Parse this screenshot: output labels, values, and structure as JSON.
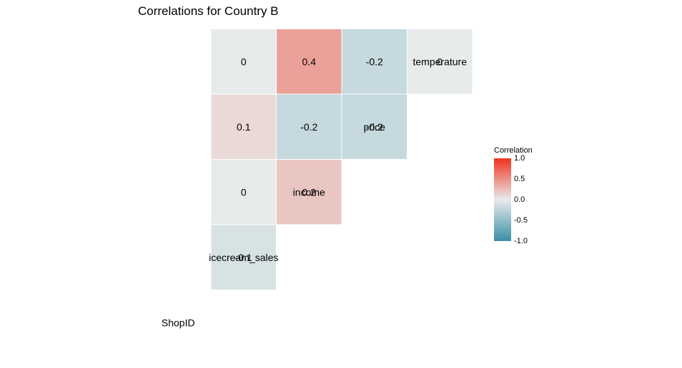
{
  "chart_data": {
    "type": "heatmap",
    "title": "Correlations for Country B",
    "variables": [
      "ShopID",
      "icecream_sales",
      "income",
      "price",
      "temperature"
    ],
    "cells": [
      {
        "row": "icecream_sales",
        "col": "ShopID",
        "value": -0.1,
        "label": "-0.1"
      },
      {
        "row": "income",
        "col": "ShopID",
        "value": 0,
        "label": "0"
      },
      {
        "row": "income",
        "col": "icecream_sales",
        "value": 0.2,
        "label": "0.2"
      },
      {
        "row": "price",
        "col": "ShopID",
        "value": 0.1,
        "label": "0.1"
      },
      {
        "row": "price",
        "col": "icecream_sales",
        "value": -0.2,
        "label": "-0.2"
      },
      {
        "row": "price",
        "col": "income",
        "value": -0.2,
        "label": "-0.2"
      },
      {
        "row": "temperature",
        "col": "ShopID",
        "value": 0,
        "label": "0"
      },
      {
        "row": "temperature",
        "col": "icecream_sales",
        "value": 0.4,
        "label": "0.4"
      },
      {
        "row": "temperature",
        "col": "income",
        "value": -0.2,
        "label": "-0.2"
      },
      {
        "row": "temperature",
        "col": "price",
        "value": 0,
        "label": "0"
      }
    ],
    "legend": {
      "title": "Correlation",
      "ticks": [
        "1.0",
        "0.5",
        "0.0",
        "-0.5",
        "-1.0"
      ],
      "tick_values": [
        1,
        0.5,
        0,
        -0.5,
        -1
      ],
      "range": [
        -1,
        1
      ],
      "placement": "right"
    },
    "colors": {
      "low": "#3a8fa6",
      "mid": "#e8ebec",
      "high": "#f0331e"
    },
    "grid": false
  }
}
